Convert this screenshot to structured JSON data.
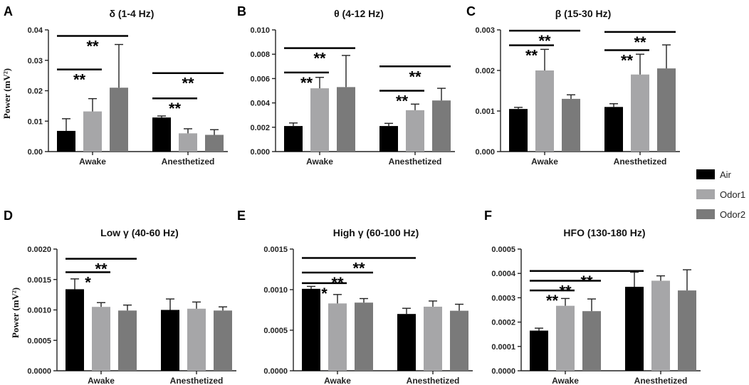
{
  "chart_data": [
    {
      "panel": "A",
      "type": "bar",
      "title": "δ (1-4 Hz)",
      "ylabel": "Power (mV²)",
      "ylim": [
        0,
        0.04
      ],
      "yticks": [
        "0.00",
        "0.01",
        "0.02",
        "0.03",
        "0.04"
      ],
      "ytick_values": [
        0,
        0.01,
        0.02,
        0.03,
        0.04
      ],
      "categories": [
        "Awake",
        "Anesthetized"
      ],
      "series": [
        {
          "name": "Air",
          "values": [
            0.0068,
            0.0112
          ],
          "errors": [
            0.004,
            0.0005
          ]
        },
        {
          "name": "Odor1",
          "values": [
            0.0132,
            0.006
          ],
          "errors": [
            0.0042,
            0.0015
          ]
        },
        {
          "name": "Odor2",
          "values": [
            0.021,
            0.0055
          ],
          "errors": [
            0.0142,
            0.0017
          ]
        }
      ],
      "significance": [
        {
          "group": 0,
          "from": 0,
          "to": 1,
          "y": 0.027,
          "label": "**"
        },
        {
          "group": 0,
          "from": 0,
          "to": 2,
          "y": 0.038,
          "label": "**"
        },
        {
          "group": 1,
          "from": 0,
          "to": 1,
          "y": 0.0175,
          "label": "**"
        },
        {
          "group": 1,
          "from": 0,
          "to": 2,
          "y": 0.0258,
          "label": "**"
        }
      ]
    },
    {
      "panel": "B",
      "type": "bar",
      "title": "θ (4-12 Hz)",
      "ylabel": "",
      "ylim": [
        0,
        0.01
      ],
      "yticks": [
        "0.000",
        "0.002",
        "0.004",
        "0.006",
        "0.008",
        "0.010"
      ],
      "ytick_values": [
        0,
        0.002,
        0.004,
        0.006,
        0.008,
        0.01
      ],
      "categories": [
        "Awake",
        "Anesthetized"
      ],
      "series": [
        {
          "name": "Air",
          "values": [
            0.0021,
            0.0021
          ],
          "errors": [
            0.00025,
            0.00022
          ]
        },
        {
          "name": "Odor1",
          "values": [
            0.0052,
            0.0034
          ],
          "errors": [
            0.0009,
            0.0005
          ]
        },
        {
          "name": "Odor2",
          "values": [
            0.0053,
            0.0042
          ],
          "errors": [
            0.0026,
            0.001
          ]
        }
      ],
      "significance": [
        {
          "group": 0,
          "from": 0,
          "to": 1,
          "y": 0.0065,
          "label": "**"
        },
        {
          "group": 0,
          "from": 0,
          "to": 2,
          "y": 0.0085,
          "label": "**"
        },
        {
          "group": 1,
          "from": 0,
          "to": 1,
          "y": 0.005,
          "label": "**"
        },
        {
          "group": 1,
          "from": 0,
          "to": 2,
          "y": 0.007,
          "label": "**"
        }
      ]
    },
    {
      "panel": "C",
      "type": "bar",
      "title": "β (15-30 Hz)",
      "ylabel": "",
      "ylim": [
        0,
        0.003
      ],
      "yticks": [
        "0.000",
        "0.001",
        "0.002",
        "0.003"
      ],
      "ytick_values": [
        0,
        0.001,
        0.002,
        0.003
      ],
      "categories": [
        "Awake",
        "Anesthetized"
      ],
      "series": [
        {
          "name": "Air",
          "values": [
            0.00105,
            0.0011
          ],
          "errors": [
            4e-05,
            8e-05
          ]
        },
        {
          "name": "Odor1",
          "values": [
            0.002,
            0.0019
          ],
          "errors": [
            0.00052,
            0.0005
          ]
        },
        {
          "name": "Odor2",
          "values": [
            0.0013,
            0.00205
          ],
          "errors": [
            0.0001,
            0.00058
          ]
        }
      ],
      "significance": [
        {
          "group": 0,
          "from": 0,
          "to": 1,
          "y": 0.00262,
          "label": "**"
        },
        {
          "group": 0,
          "from": 0,
          "to": 2,
          "y": 0.00298,
          "label": "**"
        },
        {
          "group": 1,
          "from": 0,
          "to": 1,
          "y": 0.0025,
          "label": "**"
        },
        {
          "group": 1,
          "from": 0,
          "to": 2,
          "y": 0.00295,
          "label": "**"
        }
      ]
    },
    {
      "panel": "D",
      "type": "bar",
      "title": "Low γ (40-60 Hz)",
      "ylabel": "Power (mV²)",
      "ylim": [
        0,
        0.002
      ],
      "yticks": [
        "0.0000",
        "0.0005",
        "0.0010",
        "0.0015",
        "0.0020"
      ],
      "ytick_values": [
        0,
        0.0005,
        0.001,
        0.0015,
        0.002
      ],
      "categories": [
        "Awake",
        "Anesthetized"
      ],
      "series": [
        {
          "name": "Air",
          "values": [
            0.00134,
            0.001
          ],
          "errors": [
            0.00017,
            0.00018
          ]
        },
        {
          "name": "Odor1",
          "values": [
            0.00105,
            0.00102
          ],
          "errors": [
            7e-05,
            0.00011
          ]
        },
        {
          "name": "Odor2",
          "values": [
            0.00099,
            0.00099
          ],
          "errors": [
            9e-05,
            6e-05
          ]
        }
      ],
      "significance": [
        {
          "group": 0,
          "from": 0,
          "to": 1,
          "y": 0.00162,
          "label": "*"
        },
        {
          "group": 0,
          "from": 0,
          "to": 2,
          "y": 0.00184,
          "label": "**"
        }
      ]
    },
    {
      "panel": "E",
      "type": "bar",
      "title": "High γ (60-100 Hz)",
      "ylabel": "",
      "ylim": [
        0,
        0.0015
      ],
      "yticks": [
        "0.0000",
        "0.0005",
        "0.0010",
        "0.0015"
      ],
      "ytick_values": [
        0,
        0.0005,
        0.001,
        0.0015
      ],
      "categories": [
        "Awake",
        "Anesthetized"
      ],
      "series": [
        {
          "name": "Air",
          "values": [
            0.00101,
            0.0007
          ],
          "errors": [
            3e-05,
            7e-05
          ]
        },
        {
          "name": "Odor1",
          "values": [
            0.00083,
            0.00079
          ],
          "errors": [
            0.00011,
            7e-05
          ]
        },
        {
          "name": "Odor2",
          "values": [
            0.00084,
            0.00074
          ],
          "errors": [
            5e-05,
            8e-05
          ]
        }
      ],
      "significance": [
        {
          "group": 0,
          "from": 0,
          "to": 1,
          "y": 0.00108,
          "label": "*"
        },
        {
          "group": 0,
          "from": 0,
          "to": 2,
          "y": 0.00121,
          "label": "**"
        },
        {
          "group": 0,
          "to_category": 1,
          "from": 0,
          "to": 0,
          "y": 0.00139,
          "label": "**"
        }
      ]
    },
    {
      "panel": "F",
      "type": "bar",
      "title": "HFO (130-180 Hz)",
      "ylabel": "",
      "ylim": [
        0,
        0.0005
      ],
      "yticks": [
        "0.0000",
        "0.0001",
        "0.0002",
        "0.0003",
        "0.0004",
        "0.0005"
      ],
      "ytick_values": [
        0,
        0.0001,
        0.0002,
        0.0003,
        0.0004,
        0.0005
      ],
      "categories": [
        "Awake",
        "Anesthetized"
      ],
      "series": [
        {
          "name": "Air",
          "values": [
            0.000165,
            0.000345
          ],
          "errors": [
            1e-05,
            6e-05
          ]
        },
        {
          "name": "Odor1",
          "values": [
            0.000267,
            0.00037
          ],
          "errors": [
            3e-05,
            2e-05
          ]
        },
        {
          "name": "Odor2",
          "values": [
            0.000245,
            0.00033
          ],
          "errors": [
            5e-05,
            8.5e-05
          ]
        }
      ],
      "significance": [
        {
          "group": 0,
          "from": 0,
          "to": 1,
          "y": 0.00033,
          "label": "**"
        },
        {
          "group": 0,
          "from": 0,
          "to": 2,
          "y": 0.00037,
          "label": "**"
        },
        {
          "group": 0,
          "to_category": 1,
          "from": 0,
          "to": 0,
          "y": 0.00041,
          "label": "**"
        }
      ]
    }
  ],
  "legend": {
    "position": "right",
    "items": [
      {
        "label": "Air",
        "color": "#000000"
      },
      {
        "label": "Odor1",
        "color": "#a6a6a8"
      },
      {
        "label": "Odor2",
        "color": "#7a7a7a"
      }
    ]
  }
}
